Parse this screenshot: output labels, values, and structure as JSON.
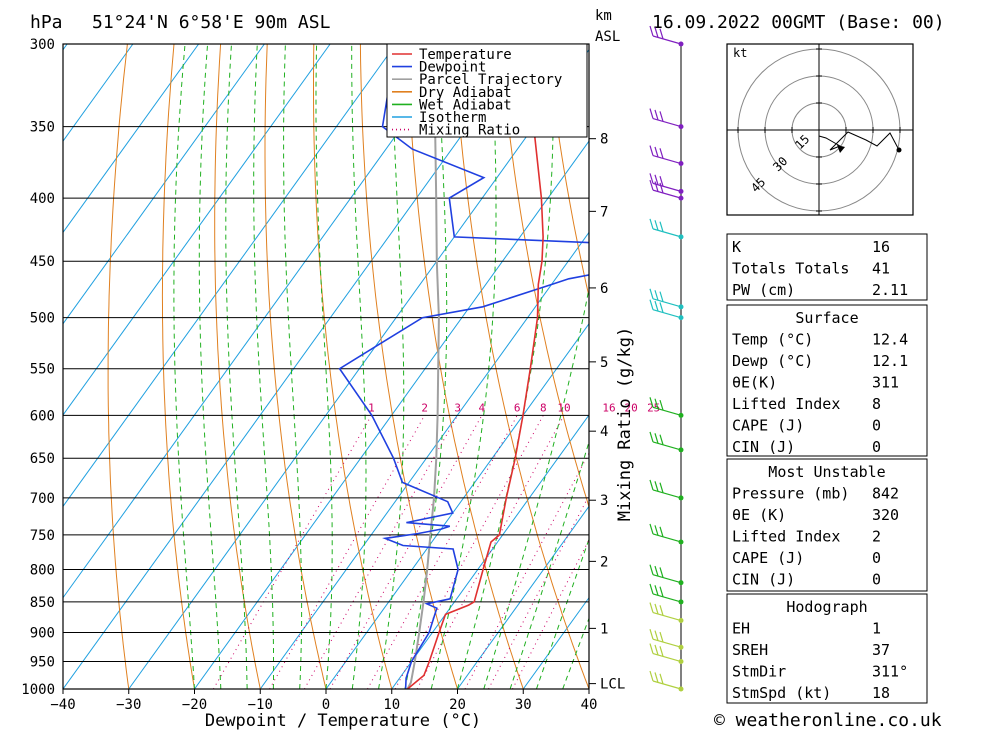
{
  "header": {
    "location": "51°24'N 6°58'E 90m ASL",
    "datetime": "16.09.2022 00GMT (Base: 00)",
    "hpa_unit": "hPa",
    "km_unit": "km",
    "asl": "ASL"
  },
  "credit": "© weatheronline.co.uk",
  "chart_data": {
    "type": "line",
    "subtype": "skew-t log-p",
    "xlabel": "Dewpoint / Temperature (°C)",
    "ylabel_right": "Mixing Ratio (g/kg)",
    "xlim": [
      -40,
      40
    ],
    "ylim_hpa": [
      1000,
      300
    ],
    "y_scale": "log",
    "x_ticks": [
      "−40",
      "−30",
      "−20",
      "−10",
      "0",
      "10",
      "20",
      "30",
      "40"
    ],
    "pressure_levels": [
      300,
      350,
      400,
      450,
      500,
      550,
      600,
      650,
      700,
      750,
      800,
      850,
      900,
      950,
      1000
    ],
    "km_ticks": [
      {
        "label": "8",
        "p": 358
      },
      {
        "label": "7",
        "p": 410
      },
      {
        "label": "6",
        "p": 473
      },
      {
        "label": "5",
        "p": 543
      },
      {
        "label": "4",
        "p": 618
      },
      {
        "label": "3",
        "p": 703
      },
      {
        "label": "2",
        "p": 788
      },
      {
        "label": "1",
        "p": 893
      },
      {
        "label": "LCL",
        "p": 990
      }
    ],
    "mixing_ratio_labels": [
      "1",
      "2",
      "3",
      "4",
      "6",
      "8",
      "10",
      "16",
      "20",
      "25"
    ],
    "legend": [
      "Temperature",
      "Dewpoint",
      "Parcel Trajectory",
      "Dry Adiabat",
      "Wet Adiabat",
      "Isotherm",
      "Mixing Ratio"
    ],
    "legend_colors": {
      "Temperature": "#e03030",
      "Dewpoint": "#2040e0",
      "Parcel Trajectory": "#a0a0a0",
      "Dry Adiabat": "#e08020",
      "Wet Adiabat": "#20b020",
      "Isotherm": "#20a0e0",
      "Mixing Ratio": "#cc0066"
    },
    "series": [
      {
        "name": "Temperature",
        "points": [
          [
            1000,
            12.4
          ],
          [
            975,
            13.4
          ],
          [
            950,
            12.7
          ],
          [
            900,
            11.0
          ],
          [
            870,
            10.0
          ],
          [
            855,
            12.5
          ],
          [
            850,
            13.0
          ],
          [
            800,
            10.8
          ],
          [
            760,
            9.0
          ],
          [
            750,
            9.5
          ],
          [
            700,
            6.5
          ],
          [
            650,
            3.5
          ],
          [
            600,
            0.0
          ],
          [
            550,
            -4.0
          ],
          [
            500,
            -8.5
          ],
          [
            470,
            -12.0
          ],
          [
            450,
            -14.0
          ],
          [
            430,
            -16.5
          ],
          [
            400,
            -21.0
          ],
          [
            350,
            -30.0
          ],
          [
            320,
            -34.0
          ],
          [
            300,
            -37.5
          ]
        ]
      },
      {
        "name": "Dewpoint",
        "points": [
          [
            1000,
            12.1
          ],
          [
            980,
            11.0
          ],
          [
            950,
            10.0
          ],
          [
            900,
            9.5
          ],
          [
            860,
            8.0
          ],
          [
            853,
            6.0
          ],
          [
            845,
            9.0
          ],
          [
            800,
            7.0
          ],
          [
            770,
            4.0
          ],
          [
            765,
            -4.0
          ],
          [
            755,
            -7.5
          ],
          [
            748,
            -3.0
          ],
          [
            742,
            0.0
          ],
          [
            738,
            1.0
          ],
          [
            733,
            -6.0
          ],
          [
            720,
            0.0
          ],
          [
            705,
            -2.0
          ],
          [
            680,
            -11.0
          ],
          [
            650,
            -15.0
          ],
          [
            600,
            -23.0
          ],
          [
            550,
            -33.0
          ],
          [
            500,
            -26.0
          ],
          [
            490,
            -18.0
          ],
          [
            470,
            -10.0
          ],
          [
            465,
            -8.0
          ],
          [
            460,
            -4.0
          ],
          [
            435,
            -7.0
          ],
          [
            430,
            -30.0
          ],
          [
            400,
            -35.0
          ],
          [
            385,
            -32.0
          ],
          [
            365,
            -46.0
          ],
          [
            350,
            -53.0
          ],
          [
            300,
            -60.0
          ]
        ]
      },
      {
        "name": "Parcel Trajectory",
        "points": [
          [
            1000,
            12.4
          ],
          [
            988,
            12.2
          ],
          [
            950,
            10.5
          ],
          [
            900,
            8.0
          ],
          [
            850,
            5.3
          ],
          [
            800,
            2.3
          ],
          [
            750,
            -1.0
          ],
          [
            700,
            -4.5
          ],
          [
            650,
            -8.5
          ],
          [
            600,
            -13.0
          ],
          [
            550,
            -18.0
          ],
          [
            500,
            -23.5
          ],
          [
            450,
            -30.0
          ],
          [
            400,
            -37.0
          ],
          [
            350,
            -45.0
          ],
          [
            300,
            -55.0
          ]
        ]
      }
    ],
    "wind_barbs_hpa": [
      300,
      350,
      375,
      395,
      400,
      430,
      490,
      500,
      600,
      640,
      700,
      760,
      820,
      850,
      880,
      925,
      950,
      1000
    ]
  },
  "hodograph": {
    "unit": "kt",
    "ring_labels": [
      "15",
      "30",
      "45"
    ]
  },
  "tables": [
    {
      "rows": [
        {
          "label": "K",
          "value": "16"
        },
        {
          "label": "Totals Totals",
          "value": "41"
        },
        {
          "label": "PW (cm)",
          "value": "2.11"
        }
      ]
    },
    {
      "title": "Surface",
      "rows": [
        {
          "label": "Temp (°C)",
          "value": "12.4"
        },
        {
          "label": "Dewp (°C)",
          "value": "12.1"
        },
        {
          "label": "θE(K)",
          "value": "311"
        },
        {
          "label": "Lifted Index",
          "value": "8"
        },
        {
          "label": "CAPE (J)",
          "value": "0"
        },
        {
          "label": "CIN (J)",
          "value": "0"
        }
      ]
    },
    {
      "title": "Most Unstable",
      "rows": [
        {
          "label": "Pressure (mb)",
          "value": "842"
        },
        {
          "label": "θE (K)",
          "value": "320"
        },
        {
          "label": "Lifted Index",
          "value": "2"
        },
        {
          "label": "CAPE (J)",
          "value": "0"
        },
        {
          "label": "CIN (J)",
          "value": "0"
        }
      ]
    },
    {
      "title": "Hodograph",
      "rows": [
        {
          "label": "EH",
          "value": "1"
        },
        {
          "label": "SREH",
          "value": "37"
        },
        {
          "label": "StmDir",
          "value": "311°"
        },
        {
          "label": "StmSpd (kt)",
          "value": "18"
        }
      ]
    }
  ]
}
